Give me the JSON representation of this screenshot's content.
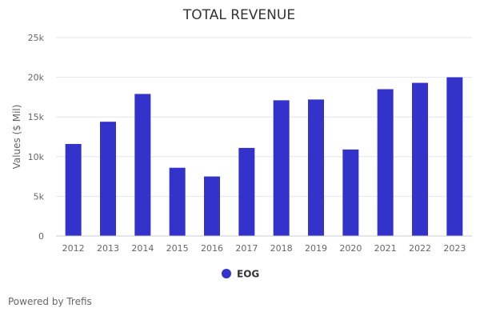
{
  "chart_data": {
    "type": "bar",
    "title": "TOTAL REVENUE",
    "xlabel": "",
    "ylabel": "Values ($ Mil)",
    "categories": [
      "2012",
      "2013",
      "2014",
      "2015",
      "2016",
      "2017",
      "2018",
      "2019",
      "2020",
      "2021",
      "2022",
      "2023"
    ],
    "series": [
      {
        "name": "EOG",
        "color": "#3333cc",
        "values": [
          11600,
          14400,
          17900,
          8600,
          7500,
          11100,
          17100,
          17200,
          10900,
          18500,
          19300,
          20000
        ]
      }
    ],
    "ylim": [
      0,
      25000
    ],
    "yticks": [
      0,
      5000,
      10000,
      15000,
      20000,
      25000
    ],
    "ytick_labels": [
      "0",
      "5k",
      "10k",
      "15k",
      "20k",
      "25k"
    ],
    "grid": true,
    "legend_position": "bottom-center"
  },
  "footer": {
    "credits": "Powered by Trefis"
  }
}
